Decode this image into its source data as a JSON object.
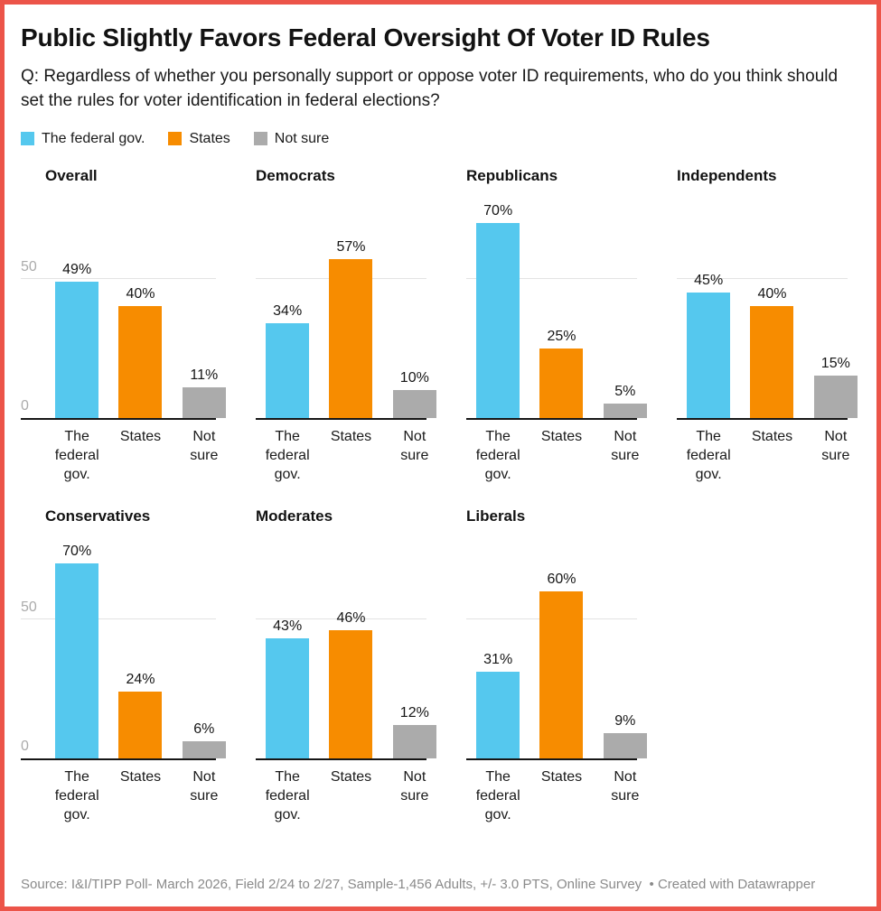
{
  "title": "Public Slightly Favors Federal Oversight Of Voter ID Rules",
  "subtitle": "Q: Regardless of whether you personally support or oppose voter ID requirements, who do you think should set the rules for voter identification in federal elections?",
  "legend": [
    {
      "label": "The federal gov.",
      "color": "#55C8EE"
    },
    {
      "label": "States",
      "color": "#F78C00"
    },
    {
      "label": "Not sure",
      "color": "#ABABAB"
    }
  ],
  "colors": {
    "frame_border": "#EC5449",
    "gridline": "#E3E3E3",
    "axis": "#161616",
    "tick_label": "#ABABAB",
    "footer_text": "#8A8A8A"
  },
  "chart_data": {
    "type": "bar",
    "title": "Public Slightly Favors Federal Oversight Of Voter ID Rules",
    "categories": [
      "The federal gov.",
      "States",
      "Not sure"
    ],
    "categories_display": [
      "The\nfederal\ngov.",
      "States",
      "Not\nsure"
    ],
    "series_colors": [
      "#55C8EE",
      "#F78C00",
      "#ABABAB"
    ],
    "value_suffix": "%",
    "y_axis": {
      "ticks": [
        50,
        0
      ],
      "max": 80.5,
      "grid": true,
      "tick_color": "#ABABAB"
    },
    "panels_per_row": 4,
    "panels": [
      {
        "name": "Overall",
        "values": [
          49,
          40,
          11
        ]
      },
      {
        "name": "Democrats",
        "values": [
          34,
          57,
          10
        ]
      },
      {
        "name": "Republicans",
        "values": [
          70,
          25,
          5
        ]
      },
      {
        "name": "Independents",
        "values": [
          45,
          40,
          15
        ]
      },
      {
        "name": "Conservatives",
        "values": [
          70,
          24,
          6
        ]
      },
      {
        "name": "Moderates",
        "values": [
          43,
          46,
          12
        ]
      },
      {
        "name": "Liberals",
        "values": [
          31,
          60,
          9
        ]
      }
    ]
  },
  "footer": {
    "source": "Source: I&I/TIPP Poll- March 2026, Field 2/24 to 2/27, Sample-1,456 Adults, +/- 3.0 PTS, Online Survey",
    "separator": "•",
    "attribution": "Created with Datawrapper"
  }
}
